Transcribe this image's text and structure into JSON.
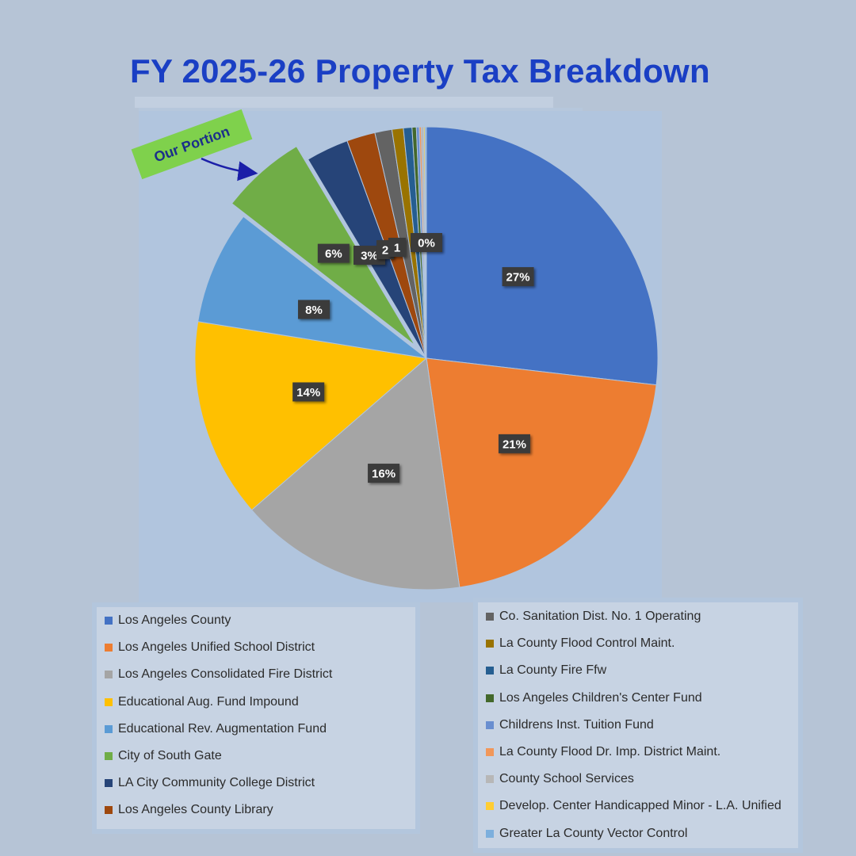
{
  "title": "FY 2025-26 Property Tax Breakdown",
  "callout": {
    "label": "Our Portion"
  },
  "chart_data": {
    "type": "pie",
    "title": "FY 2025-26 Property Tax Breakdown",
    "legend_placement": "bottom",
    "slices": [
      {
        "name": "Los Angeles County",
        "value": 27.0,
        "label": "27%",
        "color": "#4472c4"
      },
      {
        "name": "Los Angeles Unified School District",
        "value": 21.0,
        "label": "21%",
        "color": "#ed7d31"
      },
      {
        "name": "Los Angeles Consolidated Fire District",
        "value": 16.0,
        "label": "16%",
        "color": "#a5a5a5"
      },
      {
        "name": "Educational Aug. Fund Impound",
        "value": 14.0,
        "label": "14%",
        "color": "#ffc000"
      },
      {
        "name": "Educational Rev. Augmentation Fund",
        "value": 8.0,
        "label": "8%",
        "color": "#5b9bd5"
      },
      {
        "name": "City of South Gate",
        "value": 6.0,
        "label": "6%",
        "color": "#70ad47"
      },
      {
        "name": "LA City Community College District",
        "value": 3.0,
        "label": "3%",
        "color": "#264478"
      },
      {
        "name": "Los Angeles County Library",
        "value": 2.0,
        "label": "2",
        "color": "#9e480e"
      },
      {
        "name": "Co. Sanitation Dist. No. 1 Operating",
        "value": 1.2,
        "label": "1",
        "color": "#636363"
      },
      {
        "name": "La County Flood Control Maint.",
        "value": 0.8,
        "label": "",
        "color": "#997300"
      },
      {
        "name": "La County Fire Ffw",
        "value": 0.6,
        "label": "",
        "color": "#255e91"
      },
      {
        "name": "Los Angeles Children's Center Fund",
        "value": 0.3,
        "label": "",
        "color": "#43682b"
      },
      {
        "name": "Childrens Inst. Tuition Fund",
        "value": 0.2,
        "label": "",
        "color": "#698ed0"
      },
      {
        "name": "La County Flood Dr. Imp. District Maint.",
        "value": 0.15,
        "label": "",
        "color": "#f1975a"
      },
      {
        "name": "County School Services",
        "value": 0.15,
        "label": "",
        "color": "#b7b7b7"
      },
      {
        "name": "Develop. Center Handicapped Minor - L.A. Unified",
        "value": 0.1,
        "label": "",
        "color": "#ffcd33"
      },
      {
        "name": "Greater La County Vector Control",
        "value": 0.1,
        "label": "0%",
        "color": "#7cafdd"
      }
    ],
    "exploded_slice": "City of South Gate"
  }
}
